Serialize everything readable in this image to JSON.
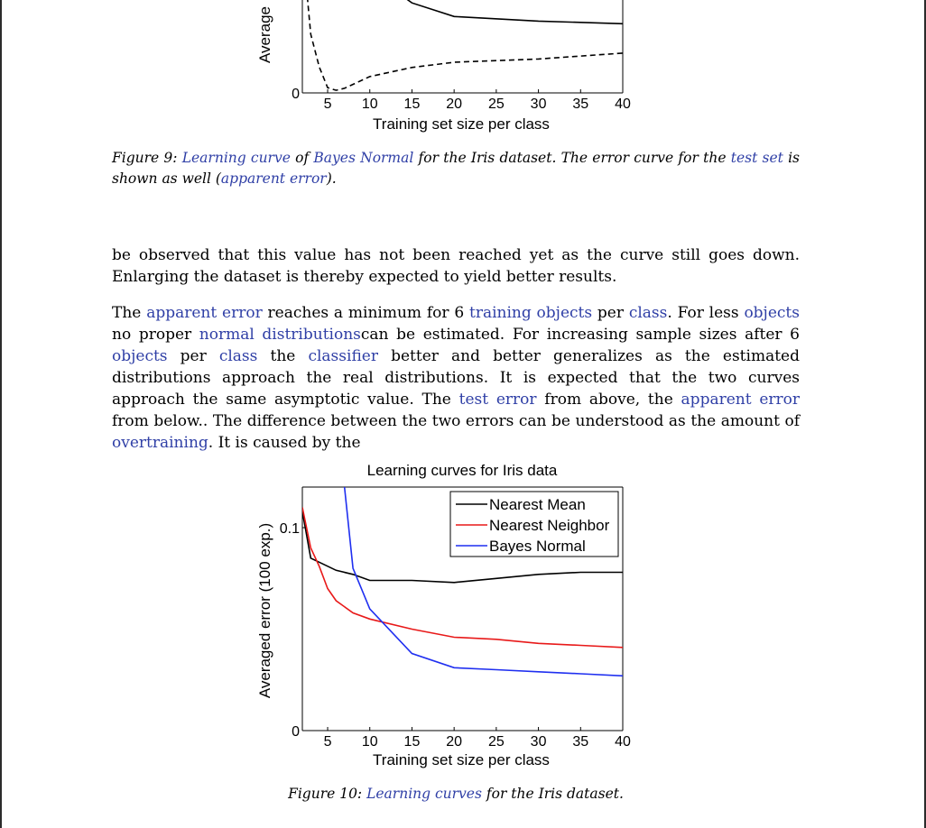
{
  "figure9": {
    "chart_data": {
      "type": "line",
      "title": "",
      "xlabel": "Training set size per class",
      "ylabel": "Average",
      "x_ticks": [
        "5",
        "10",
        "15",
        "20",
        "25",
        "30",
        "35",
        "40"
      ],
      "y_ticks": [
        "0"
      ],
      "xlim": [
        2,
        40
      ],
      "ylim": [
        0,
        0.17
      ],
      "series": [
        {
          "style": "solid",
          "color": "#000000",
          "points": [
            [
              10,
              0.185
            ],
            [
              15,
              0.138
            ],
            [
              20,
              0.117
            ],
            [
              30,
              0.11
            ],
            [
              40,
              0.106
            ]
          ]
        },
        {
          "style": "dashed",
          "color": "#000000",
          "points": [
            [
              2,
              0.23
            ],
            [
              3,
              0.09
            ],
            [
              4,
              0.04
            ],
            [
              5,
              0.008
            ],
            [
              6,
              0.004
            ],
            [
              7,
              0.007
            ],
            [
              10,
              0.025
            ],
            [
              15,
              0.039
            ],
            [
              20,
              0.047
            ],
            [
              30,
              0.052
            ],
            [
              40,
              0.061
            ]
          ]
        }
      ]
    },
    "caption": {
      "label": "Figure 9:",
      "parts": [
        {
          "t": "Learning curve",
          "link": true
        },
        {
          "t": "of",
          "link": false
        },
        {
          "t": "Bayes Normal",
          "link": true
        },
        {
          "t": "for the Iris dataset. The error curve for the",
          "link": false
        },
        {
          "t": "test set",
          "link": true
        },
        {
          "t": "is shown as well (",
          "link": false
        },
        {
          "t": "apparent error",
          "link": true
        },
        {
          "t": ").",
          "link": false
        }
      ]
    }
  },
  "paragraphs": [
    [
      {
        "t": "be observed that this value has not been reached yet as the curve still goes down. Enlarging the dataset is thereby expected to yield better results.",
        "link": false
      }
    ],
    [
      {
        "t": "The ",
        "link": false
      },
      {
        "t": "apparent error",
        "link": true
      },
      {
        "t": " reaches a minimum for 6 ",
        "link": false
      },
      {
        "t": "training objects",
        "link": true
      },
      {
        "t": " per ",
        "link": false
      },
      {
        "t": "class",
        "link": true
      },
      {
        "t": ". For less ",
        "link": false
      },
      {
        "t": "objects",
        "link": true
      },
      {
        "t": " no proper ",
        "link": false
      },
      {
        "t": "normal distributions",
        "link": true
      },
      {
        "t": "can be estimated. For increasing sample sizes after 6 ",
        "link": false
      },
      {
        "t": "objects",
        "link": true
      },
      {
        "t": " per ",
        "link": false
      },
      {
        "t": "class",
        "link": true
      },
      {
        "t": " the ",
        "link": false
      },
      {
        "t": "classifier",
        "link": true
      },
      {
        "t": " better and better generalizes as the estimated distributions approach the real distributions. It is expected that the two curves approach the same asymptotic value. The ",
        "link": false
      },
      {
        "t": "test error",
        "link": true
      },
      {
        "t": " from above, the ",
        "link": false
      },
      {
        "t": "apparent error",
        "link": true
      },
      {
        "t": " from below.. The difference between the two errors can be understood as the amount of ",
        "link": false
      },
      {
        "t": "overtraining",
        "link": true
      },
      {
        "t": ". It is caused by the",
        "link": false
      }
    ]
  ],
  "figure10": {
    "chart_data": {
      "type": "line",
      "title": "Learning curves for Iris data",
      "xlabel": "Training set size per class",
      "ylabel": "Averaged error (100 exp.)",
      "x_ticks": [
        "5",
        "10",
        "15",
        "20",
        "25",
        "30",
        "35",
        "40"
      ],
      "y_ticks": [
        "0",
        "0.1"
      ],
      "xlim": [
        2,
        40
      ],
      "ylim": [
        0,
        0.12
      ],
      "legend": "top-right",
      "series": [
        {
          "name": "Nearest Mean",
          "color": "#000000",
          "points": [
            [
              2,
              0.108
            ],
            [
              3,
              0.085
            ],
            [
              4,
              0.083
            ],
            [
              6,
              0.079
            ],
            [
              8,
              0.077
            ],
            [
              10,
              0.074
            ],
            [
              15,
              0.074
            ],
            [
              20,
              0.073
            ],
            [
              25,
              0.075
            ],
            [
              30,
              0.077
            ],
            [
              35,
              0.078
            ],
            [
              40,
              0.078
            ]
          ]
        },
        {
          "name": "Nearest Neighbor",
          "color": "#e81919",
          "points": [
            [
              2,
              0.11
            ],
            [
              3,
              0.09
            ],
            [
              4,
              0.081
            ],
            [
              5,
              0.07
            ],
            [
              6,
              0.064
            ],
            [
              8,
              0.058
            ],
            [
              10,
              0.055
            ],
            [
              15,
              0.05
            ],
            [
              20,
              0.046
            ],
            [
              25,
              0.045
            ],
            [
              30,
              0.043
            ],
            [
              35,
              0.042
            ],
            [
              40,
              0.041
            ]
          ]
        },
        {
          "name": "Bayes Normal",
          "color": "#1f2ff0",
          "points": [
            [
              7,
              0.12
            ],
            [
              8,
              0.08
            ],
            [
              10,
              0.06
            ],
            [
              15,
              0.038
            ],
            [
              20,
              0.031
            ],
            [
              25,
              0.03
            ],
            [
              30,
              0.029
            ],
            [
              35,
              0.028
            ],
            [
              40,
              0.027
            ]
          ]
        }
      ]
    },
    "caption": {
      "label": "Figure 10:",
      "parts": [
        {
          "t": "Learning curves",
          "link": true
        },
        {
          "t": "for the Iris dataset.",
          "link": false
        }
      ]
    }
  }
}
